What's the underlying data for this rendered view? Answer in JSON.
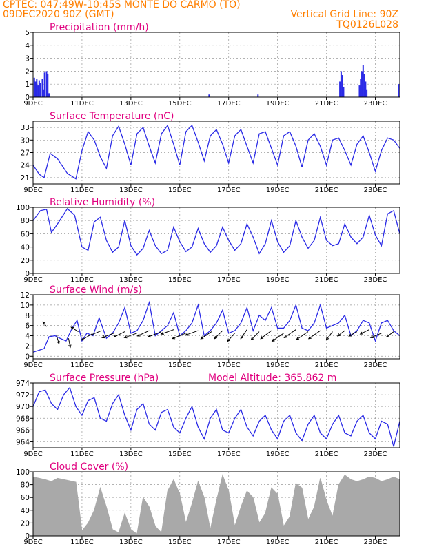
{
  "header": {
    "line1": "CPTEC:   047:49W-10:45S   MONTE DO CARMO (TO)",
    "line2_left": "09DEC2020 90Z (GMT)",
    "line2_right": "Vertical Grid Line: 90Z",
    "line3_right": "TQ0126L028"
  },
  "colors": {
    "header": "#ff7f00",
    "panel_title": "#e0007f",
    "line": "#2a2ae6",
    "cloud": "#a9a9a9",
    "arrow": "#000000"
  },
  "x_ticks": [
    "9DEC",
    "11DEC",
    "13DEC",
    "15DEC",
    "17DEC",
    "19DEC",
    "21DEC",
    "23DEC"
  ],
  "chart_data": [
    {
      "type": "bar",
      "title": "Precipitation (mm/h)",
      "ylim": [
        0,
        5
      ],
      "yticks": [
        0,
        1,
        2,
        3,
        4,
        5
      ],
      "x_range_days": [
        9,
        24
      ],
      "grid": true,
      "x": [
        9.05,
        9.1,
        9.15,
        9.2,
        9.25,
        9.3,
        9.38,
        9.42,
        9.47,
        9.55,
        9.6,
        9.65,
        16.2,
        18.2,
        21.55,
        21.6,
        21.65,
        21.7,
        22.35,
        22.4,
        22.45,
        22.5,
        22.55,
        22.6,
        22.65,
        23.95
      ],
      "values": [
        1.5,
        1.2,
        1.4,
        0.9,
        1.3,
        1.1,
        1.4,
        0.6,
        1.9,
        2.0,
        1.8,
        0.3,
        0.2,
        0.2,
        1.2,
        2.0,
        1.7,
        0.8,
        0.9,
        1.4,
        2.0,
        2.5,
        1.8,
        1.2,
        0.6,
        1.0
      ]
    },
    {
      "type": "line",
      "title": "Surface Temperature (nC)",
      "ylim": [
        19.5,
        34.5
      ],
      "yticks": [
        21,
        24,
        27,
        30,
        33
      ],
      "x_range_days": [
        9,
        24
      ],
      "grid": true,
      "x": [
        9.0,
        9.25,
        9.45,
        9.7,
        10.0,
        10.4,
        10.75,
        11.0,
        11.25,
        11.5,
        11.75,
        12.0,
        12.25,
        12.5,
        12.75,
        13.0,
        13.25,
        13.5,
        13.75,
        14.0,
        14.25,
        14.5,
        14.75,
        15.0,
        15.25,
        15.5,
        15.75,
        16.0,
        16.25,
        16.5,
        16.75,
        17.0,
        17.25,
        17.5,
        17.75,
        18.0,
        18.25,
        18.5,
        18.75,
        19.0,
        19.25,
        19.5,
        19.75,
        20.0,
        20.25,
        20.5,
        20.75,
        21.0,
        21.25,
        21.5,
        21.75,
        22.0,
        22.25,
        22.5,
        22.75,
        23.0,
        23.25,
        23.5,
        23.75,
        24.0
      ],
      "values": [
        24.0,
        21.8,
        21.0,
        26.8,
        25.5,
        22.0,
        20.7,
        27.5,
        32.0,
        30.0,
        26.0,
        23.2,
        31.0,
        33.3,
        29.0,
        24.0,
        31.5,
        33.0,
        28.5,
        24.5,
        31.5,
        33.5,
        29.0,
        24.0,
        32.0,
        33.5,
        29.5,
        25.0,
        31.0,
        32.5,
        29.0,
        24.5,
        31.0,
        32.5,
        28.5,
        24.5,
        31.5,
        32.0,
        28.0,
        24.0,
        31.0,
        32.0,
        28.5,
        23.5,
        30.0,
        31.5,
        28.5,
        24.0,
        30.0,
        30.5,
        27.5,
        24.0,
        29.0,
        31.0,
        27.0,
        22.5,
        27.5,
        30.5,
        30.0,
        28.0
      ]
    },
    {
      "type": "line",
      "title": "Relative Humidity (%)",
      "ylim": [
        0,
        100
      ],
      "yticks": [
        0,
        20,
        40,
        60,
        80,
        100
      ],
      "x_range_days": [
        9,
        24
      ],
      "grid": true,
      "x": [
        9.0,
        9.3,
        9.55,
        9.75,
        10.0,
        10.4,
        10.7,
        11.0,
        11.25,
        11.5,
        11.75,
        12.0,
        12.25,
        12.5,
        12.75,
        13.0,
        13.25,
        13.5,
        13.75,
        14.0,
        14.25,
        14.5,
        14.75,
        15.0,
        15.25,
        15.5,
        15.75,
        16.0,
        16.25,
        16.5,
        16.75,
        17.0,
        17.25,
        17.5,
        17.75,
        18.0,
        18.25,
        18.5,
        18.75,
        19.0,
        19.25,
        19.5,
        19.75,
        20.0,
        20.25,
        20.5,
        20.75,
        21.0,
        21.25,
        21.5,
        21.75,
        22.0,
        22.25,
        22.5,
        22.75,
        23.0,
        23.25,
        23.5,
        23.75,
        24.0
      ],
      "values": [
        80,
        95,
        97,
        62,
        75,
        98,
        88,
        40,
        35,
        78,
        85,
        50,
        32,
        40,
        80,
        42,
        28,
        38,
        65,
        42,
        30,
        35,
        70,
        48,
        33,
        40,
        68,
        45,
        32,
        42,
        70,
        50,
        35,
        45,
        75,
        55,
        30,
        45,
        80,
        48,
        32,
        42,
        80,
        55,
        38,
        50,
        85,
        50,
        42,
        45,
        75,
        55,
        45,
        55,
        88,
        58,
        42,
        90,
        95,
        60
      ]
    },
    {
      "type": "line",
      "title": "Surface Wind (m/s)",
      "ylim": [
        -0.5,
        12
      ],
      "yticks": [
        0,
        2,
        4,
        6,
        8,
        10,
        12
      ],
      "x_range_days": [
        9,
        24
      ],
      "grid": true,
      "x": [
        9.0,
        9.25,
        9.45,
        9.65,
        9.9,
        10.1,
        10.35,
        10.6,
        10.8,
        11.0,
        11.2,
        11.45,
        11.7,
        12.0,
        12.25,
        12.5,
        12.75,
        13.0,
        13.25,
        13.5,
        13.75,
        14.0,
        14.25,
        14.5,
        14.75,
        15.0,
        15.25,
        15.5,
        15.75,
        16.0,
        16.25,
        16.5,
        16.75,
        17.0,
        17.25,
        17.5,
        17.75,
        18.0,
        18.25,
        18.5,
        18.75,
        19.0,
        19.25,
        19.5,
        19.75,
        20.0,
        20.25,
        20.5,
        20.75,
        21.0,
        21.25,
        21.5,
        21.75,
        22.0,
        22.25,
        22.5,
        22.75,
        23.0,
        23.25,
        23.5,
        23.75,
        24.0
      ],
      "values": [
        0.8,
        1.2,
        1.5,
        3.8,
        4.0,
        3.5,
        3.0,
        5.5,
        7.0,
        3.0,
        4.5,
        4.0,
        7.5,
        3.5,
        4.5,
        6.5,
        9.5,
        4.5,
        5.0,
        7.0,
        10.5,
        4.0,
        5.0,
        6.0,
        8.5,
        4.0,
        5.0,
        6.5,
        10.0,
        4.0,
        5.0,
        6.5,
        9.0,
        4.5,
        5.0,
        6.5,
        9.5,
        5.0,
        8.0,
        7.0,
        9.5,
        5.5,
        5.5,
        7.0,
        10.0,
        5.5,
        5.0,
        6.5,
        10.0,
        5.5,
        6.0,
        6.5,
        8.0,
        4.0,
        5.0,
        7.0,
        6.5,
        3.0,
        6.5,
        7.0,
        5.0,
        4.0
      ],
      "arrow_x": [
        9.55,
        9.95,
        10.45,
        10.85,
        11.35,
        11.8,
        12.3,
        12.75,
        13.25,
        13.75,
        14.25,
        14.75,
        15.25,
        15.75,
        16.3,
        16.75,
        17.25,
        17.75,
        18.25,
        18.75,
        19.25,
        19.75,
        20.25,
        20.75,
        21.25,
        21.75,
        22.25,
        22.75,
        23.25,
        23.75
      ],
      "arrow_y": [
        5.8,
        4.2,
        3.5,
        4.8,
        4.2,
        5.0,
        4.5,
        4.8,
        4.5,
        5.0,
        4.8,
        5.2,
        4.5,
        5.0,
        4.8,
        5.0,
        4.5,
        5.2,
        4.8,
        5.0,
        4.5,
        5.2,
        4.8,
        5.0,
        4.8,
        5.0,
        4.8,
        5.2,
        4.5,
        4.8
      ],
      "arrow_u": [
        -0.4,
        0.3,
        0.2,
        -0.8,
        -1.0,
        -1.2,
        -1.3,
        -1.2,
        -1.4,
        -1.3,
        -1.5,
        -1.4,
        -1.5,
        -1.4,
        -1.2,
        -0.9,
        -0.8,
        -0.7,
        -0.9,
        -1.2,
        -1.3,
        -1.3,
        -1.3,
        -1.3,
        -0.7,
        -0.8,
        -0.9,
        -1.0,
        -1.2,
        -0.8
      ],
      "arrow_v": [
        0.5,
        -1.0,
        -1.0,
        0.5,
        -0.6,
        -0.5,
        -0.5,
        -0.6,
        -0.5,
        -0.6,
        -0.6,
        -0.5,
        -0.6,
        -0.5,
        -0.8,
        -0.9,
        -0.9,
        -1.0,
        -0.9,
        -0.9,
        -0.9,
        -0.9,
        -0.9,
        -0.9,
        -0.9,
        -0.6,
        -0.5,
        -0.5,
        -0.5,
        -0.6
      ]
    },
    {
      "type": "line",
      "title": "Surface Pressure (hPa)",
      "annotation": "Model Altitude: 365.862  m",
      "ylim": [
        963,
        974
      ],
      "yticks": [
        964,
        966,
        968,
        970,
        972,
        974
      ],
      "x_range_days": [
        9,
        24
      ],
      "grid": true,
      "x": [
        9.0,
        9.25,
        9.5,
        9.75,
        10.0,
        10.25,
        10.5,
        10.75,
        11.0,
        11.25,
        11.5,
        11.75,
        12.0,
        12.25,
        12.5,
        12.75,
        13.0,
        13.25,
        13.5,
        13.75,
        14.0,
        14.25,
        14.5,
        14.75,
        15.0,
        15.25,
        15.5,
        15.75,
        16.0,
        16.25,
        16.5,
        16.75,
        17.0,
        17.25,
        17.5,
        17.75,
        18.0,
        18.25,
        18.5,
        18.75,
        19.0,
        19.25,
        19.5,
        19.75,
        20.0,
        20.25,
        20.5,
        20.75,
        21.0,
        21.25,
        21.5,
        21.75,
        22.0,
        22.25,
        22.5,
        22.75,
        23.0,
        23.25,
        23.5,
        23.75,
        24.0
      ],
      "values": [
        970.0,
        972.5,
        972.8,
        970.5,
        969.5,
        972.0,
        973.2,
        970.0,
        968.5,
        971.0,
        971.5,
        968.0,
        967.5,
        970.5,
        972.0,
        968.5,
        966.0,
        969.5,
        970.5,
        967.0,
        966.0,
        969.0,
        969.5,
        966.5,
        965.5,
        968.0,
        970.0,
        966.5,
        964.5,
        968.0,
        969.5,
        966.0,
        965.5,
        968.0,
        969.5,
        966.5,
        965.0,
        967.5,
        968.5,
        966.0,
        964.5,
        967.5,
        968.5,
        965.5,
        964.2,
        967.0,
        968.5,
        965.5,
        964.5,
        967.0,
        968.5,
        965.5,
        965.0,
        967.5,
        968.5,
        965.5,
        964.5,
        967.5,
        967.0,
        963.2,
        967.5
      ]
    },
    {
      "type": "area",
      "title": "Cloud Cover (%)",
      "ylim": [
        0,
        100
      ],
      "yticks": [
        0,
        20,
        40,
        60,
        80,
        100
      ],
      "x_range_days": [
        9,
        24
      ],
      "grid": true,
      "x": [
        9.0,
        9.25,
        9.5,
        9.75,
        10.0,
        10.25,
        10.5,
        10.75,
        11.0,
        11.25,
        11.5,
        11.75,
        12.0,
        12.25,
        12.5,
        12.75,
        13.0,
        13.25,
        13.5,
        13.75,
        14.0,
        14.25,
        14.5,
        14.75,
        15.0,
        15.25,
        15.5,
        15.75,
        16.0,
        16.25,
        16.5,
        16.75,
        17.0,
        17.25,
        17.5,
        17.75,
        18.0,
        18.25,
        18.5,
        18.75,
        19.0,
        19.25,
        19.5,
        19.75,
        20.0,
        20.25,
        20.5,
        20.75,
        21.0,
        21.25,
        21.5,
        21.75,
        22.0,
        22.25,
        22.5,
        22.75,
        23.0,
        23.25,
        23.5,
        23.75,
        24.0
      ],
      "values": [
        92,
        90,
        88,
        85,
        90,
        88,
        86,
        84,
        8,
        20,
        40,
        75,
        45,
        10,
        5,
        35,
        10,
        3,
        60,
        45,
        15,
        5,
        70,
        88,
        65,
        20,
        50,
        85,
        60,
        10,
        55,
        95,
        70,
        15,
        45,
        70,
        60,
        20,
        35,
        75,
        65,
        15,
        30,
        82,
        75,
        25,
        45,
        90,
        55,
        30,
        80,
        95,
        88,
        85,
        88,
        92,
        90,
        85,
        88,
        92,
        88
      ]
    }
  ]
}
